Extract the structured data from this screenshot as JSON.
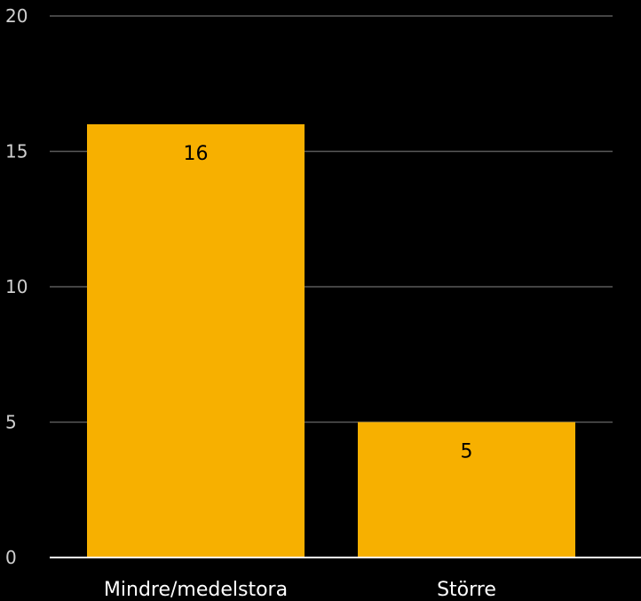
{
  "chart_data": {
    "type": "bar",
    "categories": [
      "Mindre/medelstora",
      "Större"
    ],
    "values": [
      16,
      5
    ],
    "ylim": [
      0,
      20
    ],
    "yticks": [
      0,
      5,
      10,
      15,
      20
    ],
    "grid": true,
    "data_labels": true
  },
  "colors": {
    "background": "#000000",
    "bar": "#F7B000",
    "gridline": "#5a5a5a",
    "axis": "#ffffff",
    "tick_text": "#cfcfcf",
    "category_text": "#ffffff",
    "data_label_text": "#000000"
  }
}
